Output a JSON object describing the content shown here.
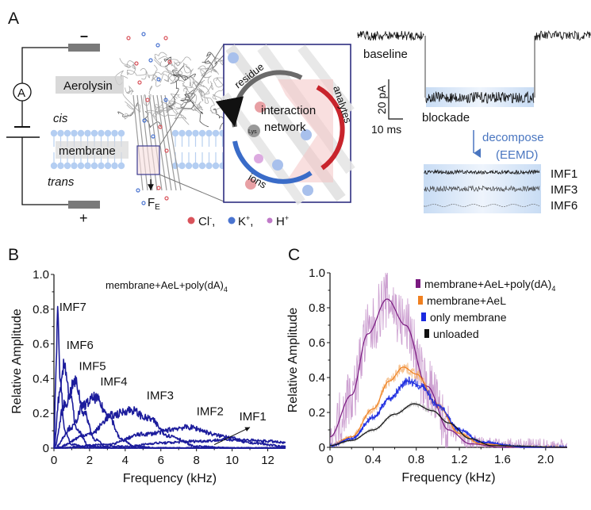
{
  "panel_a": {
    "label": "A",
    "electrode_negative": "–",
    "electrode_positive": "+",
    "ammeter": "A",
    "aerolysin": "Aerolysin",
    "cis": "cis",
    "membrane": "membrane",
    "trans": "trans",
    "force": {
      "main": "F",
      "sub": "E"
    },
    "inset": {
      "residue": "residue",
      "analytes": "analytes",
      "ions": "ions",
      "interaction_line1": "interaction",
      "interaction_line2": "network",
      "lys": "Lys"
    },
    "legend": [
      {
        "ion": "Cl",
        "charge": "-",
        "color": "#d9535b"
      },
      {
        "ion": "K",
        "charge": "+",
        "color": "#4a74d0"
      },
      {
        "ion": "H",
        "charge": "+",
        "color": "#c07ac8"
      }
    ],
    "trace": {
      "baseline": "baseline",
      "blockade": "blockade",
      "scale_current": "20 pA",
      "scale_time": "10 ms",
      "decompose": "decompose",
      "method": "(EEMD)",
      "imfs": [
        "IMF1",
        "IMF3",
        "IMF6"
      ]
    }
  },
  "chart_data": [
    {
      "panel": "B",
      "type": "line",
      "annotation": {
        "main": "membrane+AeL+poly(dA)",
        "sub": "4"
      },
      "xlabel": "Frequency (kHz)",
      "ylabel": "Relative Amplitude",
      "xlim": [
        0,
        13
      ],
      "ylim": [
        0,
        1.0
      ],
      "xticks": [
        0,
        2,
        4,
        6,
        8,
        10,
        12
      ],
      "xtick_labels": [
        "0",
        "2",
        "4",
        "6",
        "8",
        "10",
        "12"
      ],
      "yticks": [
        0,
        0.2,
        0.4,
        0.6,
        0.8,
        1.0
      ],
      "ytick_labels": [
        "0",
        "0.2",
        "0.4",
        "0.6",
        "0.8",
        "1.0"
      ],
      "grid": false,
      "color": "#1c1c9c",
      "series": [
        {
          "name": "IMF7",
          "points": [
            [
              0,
              0
            ],
            [
              0.1,
              0.4
            ],
            [
              0.2,
              0.75
            ],
            [
              0.35,
              0.4
            ],
            [
              0.6,
              0.1
            ],
            [
              1,
              0.02
            ],
            [
              2,
              0
            ]
          ]
        },
        {
          "name": "IMF6",
          "points": [
            [
              0,
              0
            ],
            [
              0.3,
              0.3
            ],
            [
              0.6,
              0.48
            ],
            [
              0.9,
              0.3
            ],
            [
              1.3,
              0.1
            ],
            [
              2,
              0.01
            ],
            [
              3,
              0
            ]
          ]
        },
        {
          "name": "IMF5",
          "points": [
            [
              0,
              0
            ],
            [
              0.6,
              0.25
            ],
            [
              1.2,
              0.38
            ],
            [
              1.7,
              0.2
            ],
            [
              2.3,
              0.05
            ],
            [
              3,
              0
            ]
          ]
        },
        {
          "name": "IMF4",
          "points": [
            [
              0,
              0
            ],
            [
              1,
              0.12
            ],
            [
              1.7,
              0.25
            ],
            [
              2.3,
              0.29
            ],
            [
              3,
              0.2
            ],
            [
              3.8,
              0.05
            ],
            [
              4.5,
              0.01
            ],
            [
              6,
              0
            ]
          ]
        },
        {
          "name": "IMF3",
          "points": [
            [
              0,
              0
            ],
            [
              2,
              0.08
            ],
            [
              3.3,
              0.19
            ],
            [
              4.3,
              0.22
            ],
            [
              5.3,
              0.17
            ],
            [
              6.5,
              0.07
            ],
            [
              8,
              0.01
            ],
            [
              10,
              0
            ]
          ]
        },
        {
          "name": "IMF2",
          "points": [
            [
              0,
              0
            ],
            [
              3,
              0.02
            ],
            [
              5,
              0.08
            ],
            [
              7.5,
              0.12
            ],
            [
              9.5,
              0.07
            ],
            [
              11,
              0.03
            ],
            [
              13,
              0.01
            ]
          ]
        },
        {
          "name": "IMF1",
          "points": [
            [
              0,
              0
            ],
            [
              4,
              0.01
            ],
            [
              6,
              0.03
            ],
            [
              8,
              0.04
            ],
            [
              10,
              0.05
            ],
            [
              12,
              0.04
            ],
            [
              13,
              0.03
            ]
          ]
        }
      ]
    },
    {
      "panel": "C",
      "type": "line",
      "xlabel": "Frequency (kHz)",
      "ylabel": "Relative Amplitude",
      "xlim": [
        0,
        2.2
      ],
      "ylim": [
        0,
        1.0
      ],
      "xticks": [
        0,
        0.4,
        0.8,
        1.2,
        1.6,
        2.0
      ],
      "xtick_labels": [
        "0",
        "0.4",
        "0.8",
        "1.2",
        "1.6",
        "2.0"
      ],
      "yticks": [
        0,
        0.2,
        0.4,
        0.6,
        0.8,
        1.0
      ],
      "ytick_labels": [
        "0",
        "0.2",
        "0.4",
        "0.6",
        "0.8",
        "1.0"
      ],
      "grid": false,
      "legend_position": "top-right",
      "series": [
        {
          "name": "membrane+AeL+poly(dA)",
          "name_sub": "4",
          "color": "#7a1a80",
          "raw_color": "#c08ac6",
          "points": [
            [
              0,
              0.06
            ],
            [
              0.2,
              0.3
            ],
            [
              0.35,
              0.65
            ],
            [
              0.53,
              0.85
            ],
            [
              0.7,
              0.7
            ],
            [
              0.9,
              0.35
            ],
            [
              1.1,
              0.1
            ],
            [
              1.3,
              0.02
            ],
            [
              1.6,
              0
            ],
            [
              2.2,
              0
            ]
          ]
        },
        {
          "name": "membrane+AeL",
          "color": "#f08020",
          "raw_color": "#f4b070",
          "points": [
            [
              0,
              0.01
            ],
            [
              0.2,
              0.06
            ],
            [
              0.4,
              0.22
            ],
            [
              0.55,
              0.38
            ],
            [
              0.68,
              0.46
            ],
            [
              0.8,
              0.42
            ],
            [
              1.0,
              0.24
            ],
            [
              1.2,
              0.08
            ],
            [
              1.4,
              0.02
            ],
            [
              1.8,
              0
            ],
            [
              2.2,
              0
            ]
          ]
        },
        {
          "name": "only membrane",
          "color": "#1a2ae0",
          "raw_color": "#1a2ae0",
          "points": [
            [
              0,
              0.01
            ],
            [
              0.2,
              0.05
            ],
            [
              0.4,
              0.17
            ],
            [
              0.55,
              0.28
            ],
            [
              0.72,
              0.38
            ],
            [
              0.85,
              0.35
            ],
            [
              1.0,
              0.24
            ],
            [
              1.2,
              0.1
            ],
            [
              1.4,
              0.03
            ],
            [
              1.8,
              0
            ],
            [
              2.2,
              0
            ]
          ]
        },
        {
          "name": "unloaded",
          "color": "#111111",
          "raw_color": "#b0b0b0",
          "points": [
            [
              0,
              0.01
            ],
            [
              0.2,
              0.04
            ],
            [
              0.4,
              0.1
            ],
            [
              0.6,
              0.19
            ],
            [
              0.78,
              0.25
            ],
            [
              0.95,
              0.21
            ],
            [
              1.1,
              0.14
            ],
            [
              1.3,
              0.05
            ],
            [
              1.5,
              0.01
            ],
            [
              2.2,
              0
            ]
          ]
        }
      ]
    }
  ]
}
